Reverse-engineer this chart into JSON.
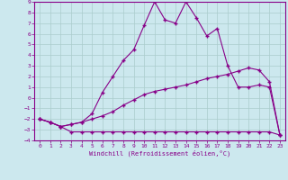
{
  "xlabel": "Windchill (Refroidissement éolien,°C)",
  "xlim": [
    -0.5,
    23.5
  ],
  "ylim": [
    -4,
    9
  ],
  "xticks": [
    0,
    1,
    2,
    3,
    4,
    5,
    6,
    7,
    8,
    9,
    10,
    11,
    12,
    13,
    14,
    15,
    16,
    17,
    18,
    19,
    20,
    21,
    22,
    23
  ],
  "yticks": [
    -4,
    -3,
    -2,
    -1,
    0,
    1,
    2,
    3,
    4,
    5,
    6,
    7,
    8,
    9
  ],
  "background_color": "#cce8ee",
  "grid_color": "#aacccc",
  "line_color": "#880088",
  "curve1_x": [
    0,
    1,
    2,
    3,
    4,
    5,
    6,
    7,
    8,
    9,
    10,
    11,
    12,
    13,
    14,
    15,
    16,
    17,
    18,
    19,
    20,
    21,
    22,
    23
  ],
  "curve1_y": [
    -2,
    -2.3,
    -2.7,
    -3.2,
    -3.2,
    -3.2,
    -3.2,
    -3.2,
    -3.2,
    -3.2,
    -3.2,
    -3.2,
    -3.2,
    -3.2,
    -3.2,
    -3.2,
    -3.2,
    -3.2,
    -3.2,
    -3.2,
    -3.2,
    -3.2,
    -3.2,
    -3.5
  ],
  "curve2_x": [
    0,
    1,
    2,
    3,
    4,
    5,
    6,
    7,
    8,
    9,
    10,
    11,
    12,
    13,
    14,
    15,
    16,
    17,
    18,
    19,
    20,
    21,
    22,
    23
  ],
  "curve2_y": [
    -2,
    -2.3,
    -2.7,
    -2.5,
    -2.3,
    -2,
    -1.7,
    -1.3,
    -0.7,
    -0.2,
    0.3,
    0.6,
    0.8,
    1.0,
    1.2,
    1.5,
    1.8,
    2.0,
    2.2,
    2.5,
    2.8,
    2.6,
    1.5,
    -3.5
  ],
  "curve3_x": [
    0,
    1,
    2,
    3,
    4,
    5,
    6,
    7,
    8,
    9,
    10,
    11,
    12,
    13,
    14,
    15,
    16,
    17,
    18,
    19,
    20,
    21,
    22,
    23
  ],
  "curve3_y": [
    -2,
    -2.3,
    -2.7,
    -2.5,
    -2.3,
    -1.5,
    0.5,
    2.0,
    3.5,
    4.5,
    6.8,
    9.0,
    7.3,
    7.0,
    9.0,
    7.5,
    5.8,
    6.5,
    3.0,
    1.0,
    1.0,
    1.2,
    1.0,
    -3.5
  ]
}
